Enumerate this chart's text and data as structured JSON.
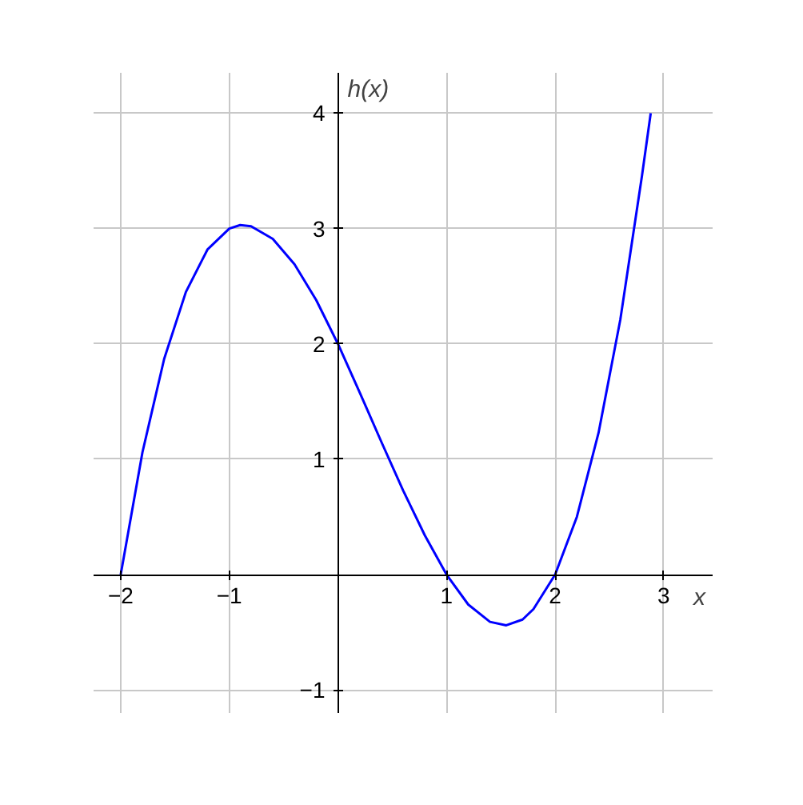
{
  "chart_data": {
    "type": "line",
    "xlabel": "x",
    "ylabel": "h(x)",
    "x": [
      -2,
      -1.8,
      -1.6,
      -1.4,
      -1.2,
      -1,
      -0.9,
      -0.8,
      -0.6,
      -0.4,
      -0.2,
      0,
      0.2,
      0.4,
      0.6,
      0.8,
      1,
      1.2,
      1.4,
      1.55,
      1.7,
      1.8,
      2,
      2.2,
      2.4,
      2.6,
      2.8,
      2.88
    ],
    "series": [
      {
        "color": "#0000ff",
        "values": [
          0,
          1.06,
          1.87,
          2.45,
          2.82,
          3,
          3.03,
          3.02,
          2.91,
          2.69,
          2.38,
          2,
          1.58,
          1.15,
          0.73,
          0.34,
          0,
          -0.26,
          -0.41,
          -0.44,
          -0.39,
          -0.3,
          0,
          0.5,
          1.23,
          2.21,
          3.46,
          4
        ]
      }
    ],
    "xlim": [
      -2.25,
      3.45
    ],
    "ylim": [
      -1.2,
      4.35
    ],
    "xticks": [
      -2,
      -1,
      1,
      2,
      3
    ],
    "yticks": [
      -1,
      1,
      2,
      3,
      4
    ],
    "grid": true,
    "marker": "none",
    "line_style": "solid"
  }
}
